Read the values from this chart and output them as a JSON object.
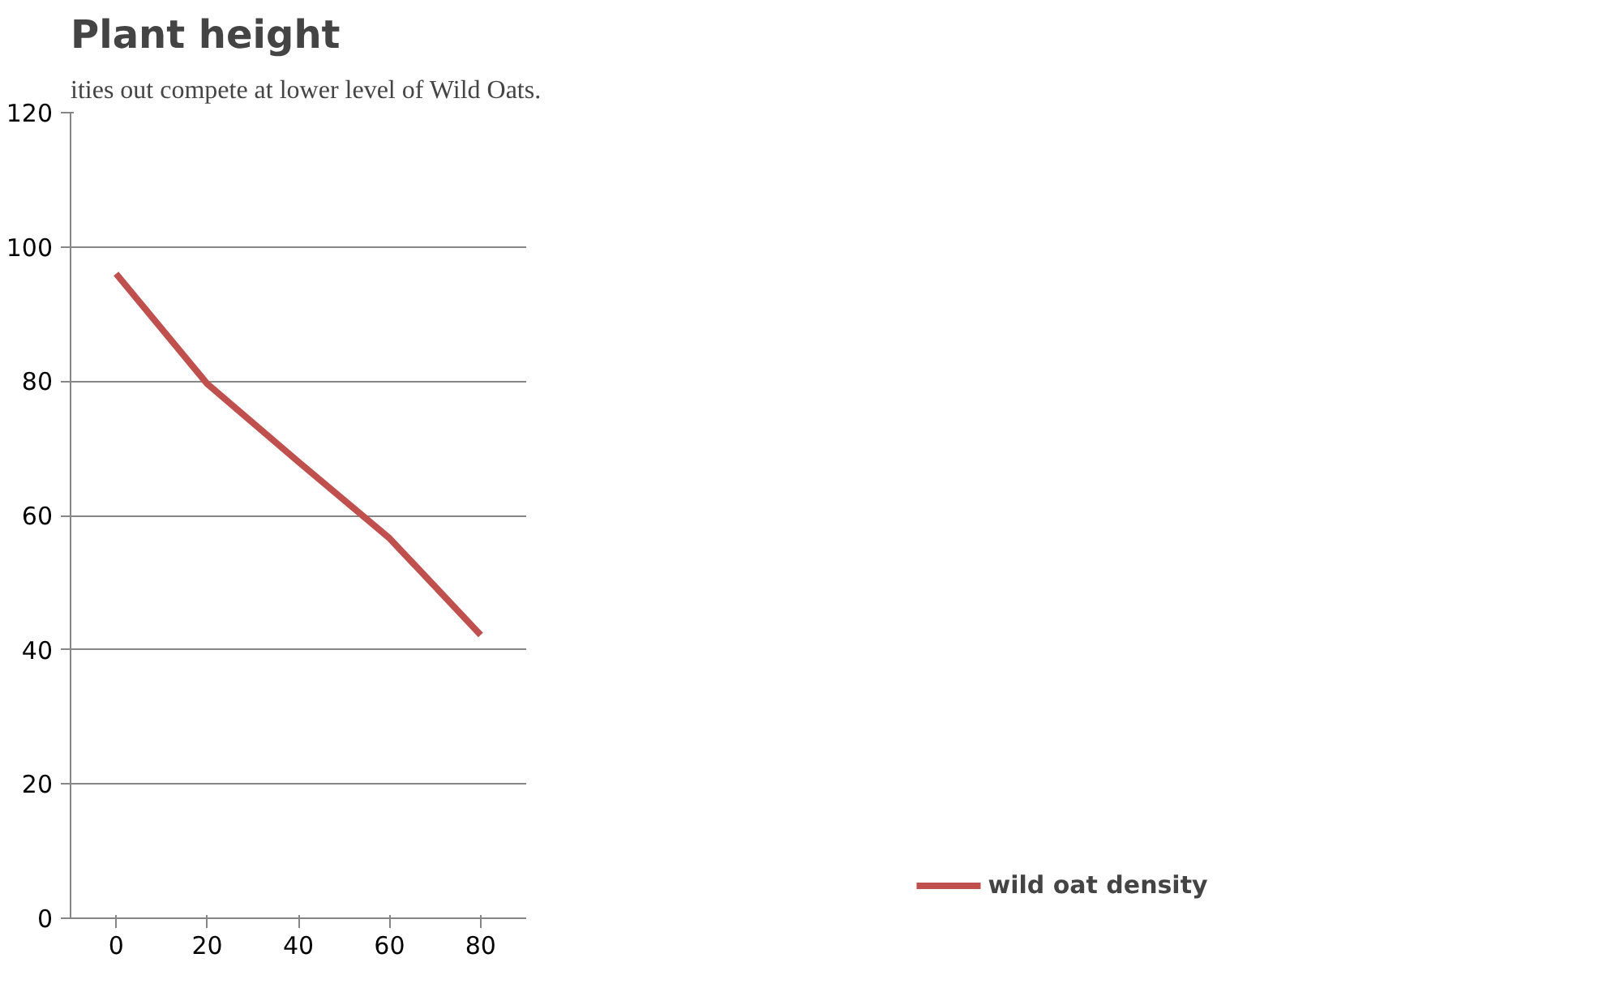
{
  "chart_data": {
    "type": "line",
    "title": "Plant height",
    "annotations": [
      "ities out compete at lower level of Wild Oats."
    ],
    "categories": [
      "0",
      "20",
      "40",
      "60",
      "80"
    ],
    "series": [
      {
        "name": "wild oat density",
        "color": "#c0504d",
        "values": [
          96,
          79.6,
          68,
          56.6,
          42.2
        ]
      }
    ],
    "ylim": [
      0,
      120
    ],
    "yticks": [
      0,
      20,
      40,
      60,
      80,
      100,
      120
    ],
    "grid": "y",
    "legend": "right",
    "marker": "none",
    "line_style": "solid"
  }
}
